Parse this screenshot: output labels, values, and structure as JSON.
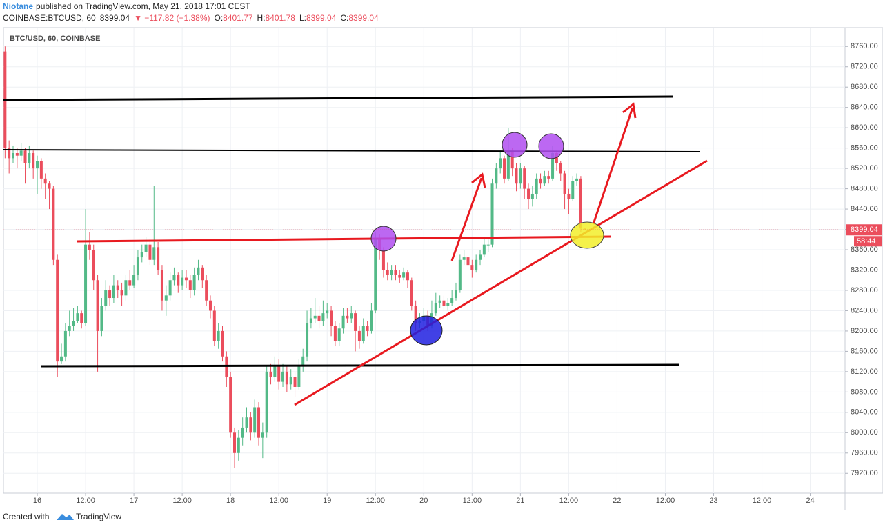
{
  "header": {
    "author": "Niotane",
    "published": "published on TradingView.com, May 21, 2018 17:01 CEST",
    "symbol": "COINBASE:BTCUSD, 60",
    "change": "▼ −117.82 (−1.38%)",
    "ohlc_labels": [
      "O:",
      "H:",
      "L:",
      "C:"
    ]
  },
  "footer": {
    "created": "Created with",
    "brand": "TradingView"
  },
  "countdown": "58:44",
  "chart_data": {
    "type": "candlestick",
    "title": "BTC/USD, 60, COINBASE",
    "up_color": "#53b987",
    "down_color": "#eb4d5c",
    "grid": true,
    "xlim": [
      15.65,
      24.36
    ],
    "ylim": [
      7881,
      8797
    ],
    "xticks": [
      16,
      {
        "value": 16.5,
        "label": "12:00"
      },
      17,
      {
        "value": 17.5,
        "label": "12:00"
      },
      18,
      {
        "value": 18.5,
        "label": "12:00"
      },
      19,
      {
        "value": 19.5,
        "label": "12:00"
      },
      20,
      {
        "value": 20.5,
        "label": "12:00"
      },
      21,
      {
        "value": 21.5,
        "label": "12:00"
      },
      22,
      {
        "value": 22.5,
        "label": "12:00"
      },
      23,
      {
        "value": 23.5,
        "label": "12:00"
      },
      24
    ],
    "yticks": [
      {
        "value": 7920,
        "label": "7920.00"
      },
      {
        "value": 7960,
        "label": "7960.00"
      },
      {
        "value": 8000,
        "label": "8000.00"
      },
      {
        "value": 8040,
        "label": "8040.00"
      },
      {
        "value": 8080,
        "label": "8080.00"
      },
      {
        "value": 8120,
        "label": "8120.00"
      },
      {
        "value": 8160,
        "label": "8160.00"
      },
      {
        "value": 8200,
        "label": "8200.00"
      },
      {
        "value": 8240,
        "label": "8240.00"
      },
      {
        "value": 8280,
        "label": "8280.00"
      },
      {
        "value": 8320,
        "label": "8320.00"
      },
      {
        "value": 8360,
        "label": "8360.00"
      },
      {
        "value": 8400,
        "label": "8400.00"
      },
      {
        "value": 8440,
        "label": "8440.00"
      },
      {
        "value": 8480,
        "label": "8480.00"
      },
      {
        "value": 8520,
        "label": "8520.00"
      },
      {
        "value": 8560,
        "label": "8560.00"
      },
      {
        "value": 8600,
        "label": "8600.00"
      },
      {
        "value": 8640,
        "label": "8640.00"
      },
      {
        "value": 8680,
        "label": "8680.00"
      },
      {
        "value": 8720,
        "label": "8720.00"
      },
      {
        "value": 8760,
        "label": "8760.00"
      }
    ],
    "x": [
      15.6667,
      15.7083,
      15.75,
      15.7917,
      15.8333,
      15.875,
      15.9167,
      15.9583,
      16,
      16.0417,
      16.0833,
      16.125,
      16.1667,
      16.2083,
      16.25,
      16.2917,
      16.3333,
      16.375,
      16.4167,
      16.4583,
      16.5,
      16.5417,
      16.5833,
      16.625,
      16.6667,
      16.7083,
      16.75,
      16.7917,
      16.8333,
      16.875,
      16.9167,
      16.9583,
      17,
      17.0417,
      17.0833,
      17.125,
      17.1667,
      17.2083,
      17.25,
      17.2917,
      17.3333,
      17.375,
      17.4167,
      17.4583,
      17.5,
      17.5417,
      17.5833,
      17.625,
      17.6667,
      17.7083,
      17.75,
      17.7917,
      17.8333,
      17.875,
      17.9167,
      17.9583,
      18,
      18.0417,
      18.0833,
      18.125,
      18.1667,
      18.2083,
      18.25,
      18.2917,
      18.3333,
      18.375,
      18.4167,
      18.4583,
      18.5,
      18.5417,
      18.5833,
      18.625,
      18.6667,
      18.7083,
      18.75,
      18.7917,
      18.8333,
      18.875,
      18.9167,
      18.9583,
      19,
      19.0417,
      19.0833,
      19.125,
      19.1667,
      19.2083,
      19.25,
      19.2917,
      19.3333,
      19.375,
      19.4167,
      19.4583,
      19.5,
      19.5417,
      19.5833,
      19.625,
      19.6667,
      19.7083,
      19.75,
      19.7917,
      19.8333,
      19.875,
      19.9167,
      19.9583,
      20,
      20.0417,
      20.0833,
      20.125,
      20.1667,
      20.2083,
      20.25,
      20.2917,
      20.3333,
      20.375,
      20.4167,
      20.4583,
      20.5,
      20.5417,
      20.5833,
      20.625,
      20.6667,
      20.7083,
      20.75,
      20.7917,
      20.8333,
      20.875,
      20.9167,
      20.9583,
      21,
      21.0417,
      21.0833,
      21.125,
      21.1667,
      21.2083,
      21.25,
      21.2917,
      21.3333,
      21.375,
      21.4167,
      21.4583,
      21.5,
      21.5417,
      21.5833,
      21.625,
      21.6667
    ],
    "open": [
      8750,
      8560,
      8540,
      8550,
      8545,
      8555,
      8530,
      8550,
      8520,
      8535,
      8500,
      8490,
      8480,
      8340,
      8140,
      8150,
      8200,
      8210,
      8220,
      8235,
      8215,
      8370,
      8360,
      8300,
      8200,
      8250,
      8280,
      8265,
      8290,
      8280,
      8270,
      8300,
      8290,
      8310,
      8345,
      8355,
      8370,
      8340,
      8365,
      8320,
      8260,
      8270,
      8300,
      8310,
      8290,
      8305,
      8300,
      8280,
      8310,
      8325,
      8300,
      8260,
      8240,
      8180,
      8200,
      8150,
      8110,
      8000,
      7960,
      7990,
      8010,
      8030,
      8000,
      8050,
      7990,
      8000,
      8120,
      8110,
      8130,
      8100,
      8120,
      8095,
      8110,
      8090,
      8130,
      8150,
      8215,
      8225,
      8230,
      8220,
      8235,
      8240,
      8210,
      8180,
      8205,
      8230,
      8225,
      8235,
      8200,
      8180,
      8210,
      8200,
      8240,
      8380,
      8360,
      8320,
      8310,
      8320,
      8310,
      8305,
      8315,
      8300,
      8250,
      8215,
      8220,
      8230,
      8210,
      8235,
      8255,
      8260,
      8250,
      8255,
      8265,
      8280,
      8340,
      8345,
      8330,
      8320,
      8340,
      8350,
      8370,
      8370,
      8490,
      8520,
      8540,
      8500,
      8555,
      8520,
      8490,
      8520,
      8480,
      8460,
      8470,
      8500,
      8490,
      8505,
      8500,
      8550,
      8530,
      8510,
      8470,
      8460,
      8495,
      8500,
      8401.77
    ],
    "high": [
      8760,
      8575,
      8565,
      8560,
      8570,
      8560,
      8565,
      8555,
      8545,
      8540,
      8510,
      8495,
      8485,
      8350,
      8175,
      8215,
      8240,
      8245,
      8250,
      8240,
      8440,
      8395,
      8370,
      8310,
      8265,
      8300,
      8290,
      8310,
      8300,
      8295,
      8310,
      8320,
      8330,
      8360,
      8370,
      8385,
      8380,
      8485,
      8375,
      8330,
      8290,
      8315,
      8325,
      8315,
      8320,
      8320,
      8310,
      8325,
      8340,
      8330,
      8310,
      8270,
      8250,
      8215,
      8210,
      8160,
      8120,
      8010,
      8005,
      8030,
      8050,
      8040,
      8065,
      8060,
      8020,
      8130,
      8135,
      8150,
      8145,
      8135,
      8130,
      8125,
      8120,
      8145,
      8165,
      8240,
      8245,
      8265,
      8250,
      8260,
      8255,
      8250,
      8220,
      8215,
      8245,
      8245,
      8250,
      8240,
      8210,
      8225,
      8220,
      8255,
      8395,
      8390,
      8365,
      8335,
      8330,
      8330,
      8320,
      8325,
      8320,
      8305,
      8260,
      8235,
      8245,
      8240,
      8260,
      8275,
      8270,
      8270,
      8265,
      8280,
      8295,
      8350,
      8360,
      8355,
      8340,
      8350,
      8360,
      8385,
      8380,
      8500,
      8530,
      8555,
      8545,
      8600,
      8560,
      8530,
      8530,
      8525,
      8490,
      8485,
      8510,
      8510,
      8515,
      8515,
      8565,
      8555,
      8535,
      8515,
      8480,
      8505,
      8510,
      8505,
      8401.78
    ],
    "low": [
      8540,
      8510,
      8530,
      8520,
      8535,
      8490,
      8520,
      8500,
      8470,
      8480,
      8460,
      8440,
      8330,
      8110,
      8135,
      8140,
      8190,
      8200,
      8215,
      8205,
      8210,
      8340,
      8280,
      8120,
      8190,
      8240,
      8250,
      8255,
      8265,
      8250,
      8260,
      8280,
      8285,
      8300,
      8335,
      8345,
      8330,
      8330,
      8310,
      8240,
      8230,
      8260,
      8290,
      8275,
      8280,
      8285,
      8265,
      8270,
      8300,
      8285,
      8250,
      8225,
      8170,
      8165,
      8140,
      8090,
      7990,
      7930,
      7945,
      7975,
      8000,
      7985,
      7990,
      7975,
      7950,
      7990,
      8095,
      8100,
      8085,
      8090,
      8080,
      8085,
      8070,
      8085,
      8120,
      8140,
      8205,
      8215,
      8205,
      8210,
      8225,
      8190,
      8170,
      8170,
      8195,
      8215,
      8215,
      8160,
      8165,
      8175,
      8190,
      8195,
      8235,
      8340,
      8305,
      8300,
      8300,
      8300,
      8295,
      8300,
      8285,
      8240,
      8200,
      8205,
      8210,
      8200,
      8205,
      8230,
      8245,
      8240,
      8240,
      8250,
      8260,
      8275,
      8330,
      8320,
      8305,
      8315,
      8330,
      8345,
      8355,
      8365,
      8480,
      8510,
      8490,
      8495,
      8505,
      8475,
      8480,
      8460,
      8440,
      8445,
      8460,
      8480,
      8485,
      8490,
      8495,
      8515,
      8495,
      8440,
      8430,
      8455,
      8485,
      8395,
      8399.04
    ],
    "close": [
      8560,
      8540,
      8550,
      8545,
      8555,
      8530,
      8550,
      8520,
      8535,
      8500,
      8490,
      8480,
      8340,
      8140,
      8150,
      8200,
      8210,
      8220,
      8235,
      8215,
      8370,
      8360,
      8300,
      8200,
      8250,
      8280,
      8265,
      8290,
      8280,
      8270,
      8300,
      8290,
      8310,
      8345,
      8355,
      8370,
      8340,
      8365,
      8320,
      8260,
      8270,
      8300,
      8310,
      8290,
      8305,
      8300,
      8280,
      8310,
      8325,
      8300,
      8260,
      8240,
      8180,
      8200,
      8150,
      8110,
      8000,
      7960,
      7990,
      8010,
      8030,
      8000,
      8050,
      7990,
      8000,
      8120,
      8110,
      8130,
      8100,
      8120,
      8095,
      8110,
      8090,
      8130,
      8150,
      8215,
      8225,
      8230,
      8220,
      8235,
      8240,
      8210,
      8180,
      8205,
      8230,
      8225,
      8235,
      8200,
      8180,
      8210,
      8200,
      8240,
      8380,
      8360,
      8320,
      8310,
      8320,
      8310,
      8305,
      8315,
      8300,
      8250,
      8215,
      8220,
      8230,
      8210,
      8235,
      8255,
      8260,
      8250,
      8255,
      8265,
      8280,
      8340,
      8345,
      8330,
      8320,
      8340,
      8350,
      8370,
      8370,
      8490,
      8520,
      8540,
      8500,
      8555,
      8520,
      8490,
      8520,
      8480,
      8460,
      8470,
      8500,
      8490,
      8505,
      8500,
      8550,
      8530,
      8510,
      8470,
      8460,
      8495,
      8500,
      8401.77,
      8399.04
    ]
  }
}
